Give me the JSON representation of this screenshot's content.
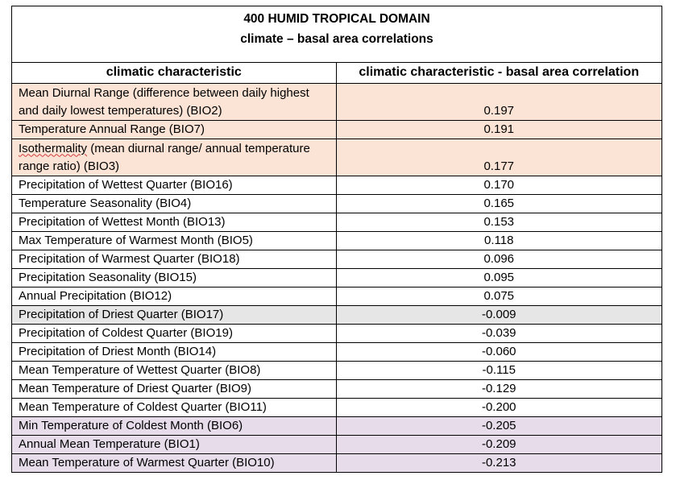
{
  "title": {
    "line1": "400 HUMID TROPICAL DOMAIN",
    "line2": "climate – basal area correlations"
  },
  "columns": {
    "characteristic": "climatic characteristic",
    "correlation": "climatic characteristic - basal area correlation"
  },
  "colors": {
    "positive_highlight": "#fbe4d5",
    "near_zero_highlight": "#e7e6e6",
    "negative_highlight": "#e6dcea"
  },
  "rows": [
    {
      "characteristic": "Mean Diurnal Range (difference  between daily highest and daily lowest temperatures) (BIO2)",
      "correlation": "0.197"
    },
    {
      "characteristic": "Temperature Annual Range (BIO7)",
      "correlation": "0.191"
    },
    {
      "characteristic_a": "Isothermality",
      "characteristic_b": " (mean diurnal range/ annual temperature range ratio) (BIO3)",
      "correlation": "0.177"
    },
    {
      "characteristic": "Precipitation of Wettest Quarter (BIO16)",
      "correlation": "0.170"
    },
    {
      "characteristic": "Temperature Seasonality (BIO4)",
      "correlation": "0.165"
    },
    {
      "characteristic": "Precipitation of Wettest Month (BIO13)",
      "correlation": "0.153"
    },
    {
      "characteristic": "Max Temperature of Warmest Month (BIO5)",
      "correlation": "0.118"
    },
    {
      "characteristic": "Precipitation of Warmest Quarter (BIO18)",
      "correlation": "0.096"
    },
    {
      "characteristic": "Precipitation Seasonality (BIO15)",
      "correlation": "0.095"
    },
    {
      "characteristic": "Annual Precipitation (BIO12)",
      "correlation": "0.075"
    },
    {
      "characteristic": "Precipitation of Driest Quarter (BIO17)",
      "correlation": "-0.009"
    },
    {
      "characteristic": "Precipitation of Coldest Quarter (BIO19)",
      "correlation": "-0.039"
    },
    {
      "characteristic": "Precipitation of Driest Month (BIO14)",
      "correlation": "-0.060"
    },
    {
      "characteristic": "Mean Temperature of Wettest Quarter (BIO8)",
      "correlation": "-0.115"
    },
    {
      "characteristic": "Mean Temperature of Driest Quarter (BIO9)",
      "correlation": "-0.129"
    },
    {
      "characteristic": "Mean Temperature of Coldest Quarter (BIO11)",
      "correlation": "-0.200"
    },
    {
      "characteristic": "Min Temperature of Coldest Month (BIO6)",
      "correlation": "-0.205"
    },
    {
      "characteristic": "Annual Mean Temperature (BIO1)",
      "correlation": "-0.209"
    },
    {
      "characteristic": "Mean Temperature of Warmest Quarter (BIO10)",
      "correlation": "-0.213"
    }
  ]
}
